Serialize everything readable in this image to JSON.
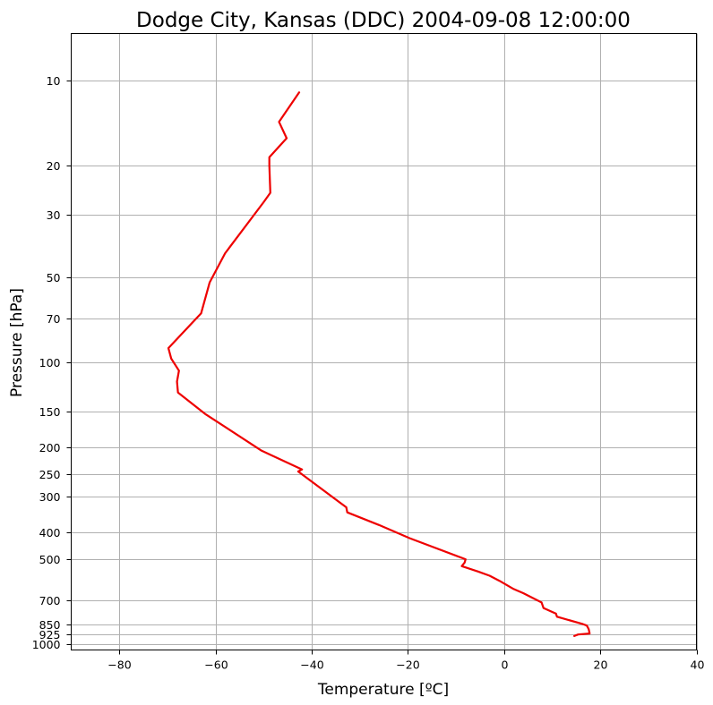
{
  "chart_data": {
    "type": "line",
    "title": "Dodge City, Kansas (DDC) 2004-09-08 12:00:00",
    "xlabel": "Temperature [ºC]",
    "ylabel": "Pressure [hPa]",
    "xlim": [
      -90,
      40
    ],
    "ylim": [
      1050,
      6.8
    ],
    "y_scale": "log",
    "y_inverted": true,
    "grid": true,
    "x_ticks": [
      -80,
      -60,
      -40,
      -20,
      0,
      20,
      40
    ],
    "x_tick_labels": [
      "−80",
      "−60",
      "−40",
      "−20",
      "0",
      "20",
      "40"
    ],
    "y_ticks": [
      10,
      20,
      30,
      50,
      70,
      100,
      150,
      200,
      250,
      300,
      400,
      500,
      700,
      850,
      925,
      1000
    ],
    "y_tick_labels": [
      "10",
      "20",
      "30",
      "50",
      "70",
      "100",
      "150",
      "200",
      "250",
      "300",
      "400",
      "500",
      "700",
      "850",
      "925",
      "1000"
    ],
    "colors": {
      "series": "#ee0000",
      "grid": "#b0b0b0"
    },
    "series": [
      {
        "color": "#ee0000",
        "points": [
          [
            14.6,
            937
          ],
          [
            15.4,
            925
          ],
          [
            17.8,
            918
          ],
          [
            17.6,
            885
          ],
          [
            17.2,
            860
          ],
          [
            16.4,
            850
          ],
          [
            11.0,
            800
          ],
          [
            10.8,
            780
          ],
          [
            8.2,
            745
          ],
          [
            7.8,
            712
          ],
          [
            4.0,
            660
          ],
          [
            2.0,
            638
          ],
          [
            -1.0,
            596
          ],
          [
            -3.0,
            572
          ],
          [
            -5.4,
            553
          ],
          [
            -8.8,
            529
          ],
          [
            -8.2,
            514
          ],
          [
            -8.0,
            500
          ],
          [
            -19.6,
            421
          ],
          [
            -26.0,
            378
          ],
          [
            -32.6,
            341
          ],
          [
            -32.8,
            327
          ],
          [
            -42.8,
            244
          ],
          [
            -42.0,
            240
          ],
          [
            -50.4,
            206
          ],
          [
            -62.0,
            153
          ],
          [
            -67.8,
            128
          ],
          [
            -68.0,
            117
          ],
          [
            -67.6,
            107
          ],
          [
            -69.2,
            97
          ],
          [
            -69.8,
            89
          ],
          [
            -63.0,
            67
          ],
          [
            -61.2,
            52
          ],
          [
            -58.0,
            41
          ],
          [
            -50.0,
            27
          ],
          [
            -48.6,
            25
          ],
          [
            -48.8,
            20
          ],
          [
            -48.8,
            18.7
          ],
          [
            -45.2,
            16
          ],
          [
            -46.8,
            14
          ],
          [
            -42.6,
            11
          ]
        ]
      }
    ]
  }
}
